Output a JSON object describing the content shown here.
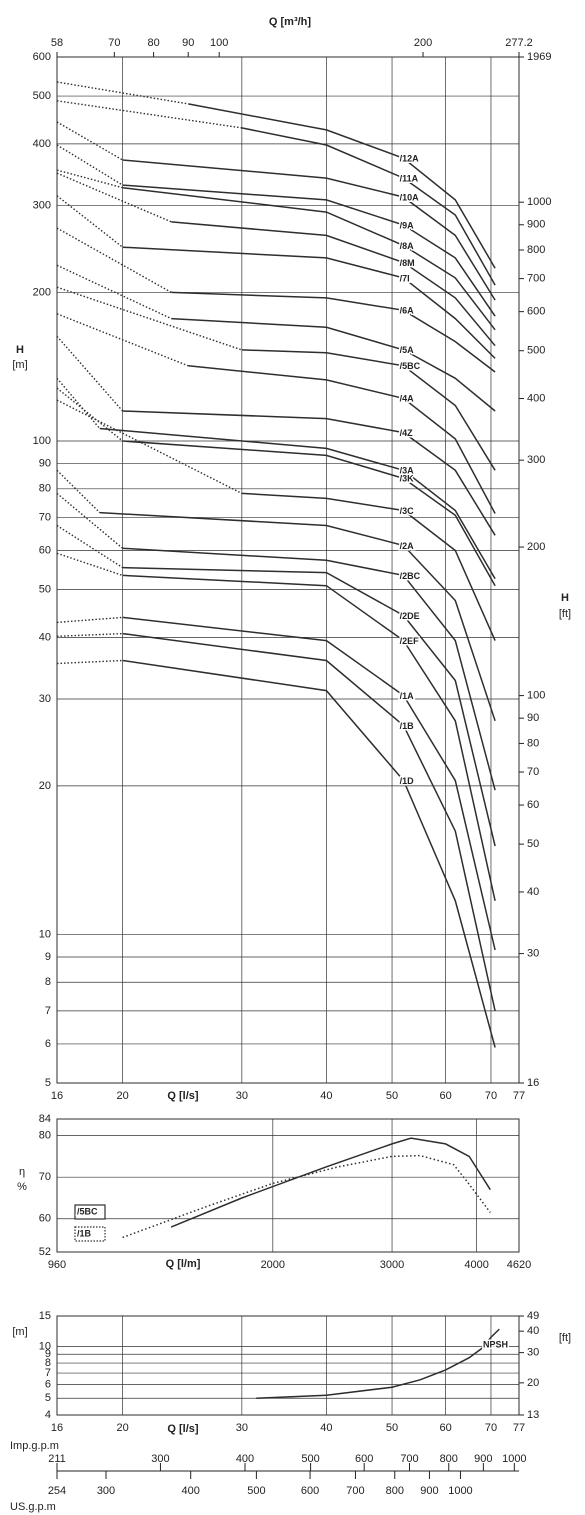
{
  "chart_data": [
    {
      "type": "line",
      "log_x": true,
      "log_y": true,
      "grid": true,
      "legend": "inline",
      "x2_label": "Q [m³/h]",
      "x_label": "Q [l/s]",
      "y_label": "H",
      "y_unit": "[m]",
      "y2_label": "H",
      "y2_unit": "[ft]",
      "xlim": [
        16,
        77
      ],
      "xticks": [
        16,
        20,
        30,
        40,
        50,
        60,
        70,
        77
      ],
      "x2lim": [
        57.6,
        277.2
      ],
      "x2ticks": [
        {
          "value": 57.6,
          "label": "58"
        },
        70,
        80,
        90,
        100,
        200,
        277.2
      ],
      "ylim": [
        5,
        600
      ],
      "yticks": [
        5,
        6,
        7,
        8,
        9,
        10,
        20,
        30,
        40,
        50,
        60,
        70,
        80,
        90,
        100,
        200,
        300,
        400,
        500,
        600
      ],
      "y2lim": [
        16.4,
        1969
      ],
      "y2ticks": [
        {
          "value": 16.4,
          "label": "16"
        },
        30,
        40,
        50,
        60,
        70,
        80,
        90,
        100,
        200,
        300,
        400,
        500,
        600,
        700,
        800,
        900,
        1000,
        1969
      ],
      "series": [
        {
          "name": "/12A",
          "color": "#2e2e2e",
          "dotted": {
            "x": [
              16,
              25
            ],
            "values": [
              534,
              482
            ]
          },
          "x": [
            25,
            40,
            52,
            62,
            71
          ],
          "values": [
            482,
            427,
            374,
            308,
            224
          ]
        },
        {
          "name": "/11A",
          "color": "#2e2e2e",
          "dotted": {
            "x": [
              16,
              30
            ],
            "values": [
              489,
              431
            ]
          },
          "x": [
            30,
            40,
            52,
            62,
            71
          ],
          "values": [
            431,
            398,
            341,
            287,
            207
          ]
        },
        {
          "name": "/10A",
          "color": "#2e2e2e",
          "dotted": {
            "x": [
              16,
              20
            ],
            "values": [
              443,
              371
            ]
          },
          "x": [
            20,
            40,
            52,
            62,
            71
          ],
          "values": [
            371,
            341,
            312,
            261,
            193
          ]
        },
        {
          "name": "/9A",
          "color": "#2e2e2e",
          "dotted": {
            "x": [
              16,
              20
            ],
            "values": [
              398,
              330
            ]
          },
          "x": [
            20,
            40,
            52,
            62,
            71
          ],
          "values": [
            330,
            308,
            274,
            235,
            179
          ]
        },
        {
          "name": "/8A",
          "color": "#2e2e2e",
          "dotted": {
            "x": [
              16,
              20
            ],
            "values": [
              354,
              326
            ]
          },
          "x": [
            20,
            40,
            52,
            62,
            71
          ],
          "values": [
            326,
            291,
            249,
            214,
            168
          ]
        },
        {
          "name": "/8M",
          "color": "#2e2e2e",
          "dotted": {
            "x": [
              16,
              23.6
            ],
            "values": [
              349,
              278
            ]
          },
          "x": [
            23.6,
            40,
            52,
            62,
            71
          ],
          "values": [
            278,
            261,
            230,
            195,
            156
          ]
        },
        {
          "name": "/7I",
          "color": "#2e2e2e",
          "dotted": {
            "x": [
              16,
              20
            ],
            "values": [
              314,
              247
            ]
          },
          "x": [
            20,
            40,
            52,
            62,
            71
          ],
          "values": [
            247,
            235,
            214,
            177,
            147
          ]
        },
        {
          "name": "/6A",
          "color": "#2e2e2e",
          "dotted": {
            "x": [
              16,
              23.6
            ],
            "values": [
              270,
              200
            ]
          },
          "x": [
            23.6,
            40,
            52,
            62,
            71
          ],
          "values": [
            200,
            195,
            184,
            159,
            138
          ]
        },
        {
          "name": "/5A",
          "color": "#2e2e2e",
          "dotted": {
            "x": [
              16,
              23.6
            ],
            "values": [
              227,
              177
            ]
          },
          "x": [
            23.6,
            40,
            52,
            62,
            71
          ],
          "values": [
            177,
            170,
            153,
            134,
            115
          ]
        },
        {
          "name": "/5BC",
          "color": "#2e2e2e",
          "dotted": {
            "x": [
              16,
              30
            ],
            "values": [
              205,
              153
            ]
          },
          "x": [
            30,
            40,
            52,
            62,
            71
          ],
          "values": [
            153,
            151,
            142,
            118,
            87.2
          ]
        },
        {
          "name": "/4A",
          "color": "#2e2e2e",
          "dotted": {
            "x": [
              16,
              25
            ],
            "values": [
              181,
              142
            ]
          },
          "x": [
            25,
            40,
            52,
            62,
            71
          ],
          "values": [
            142,
            133,
            122,
            101,
            71.3
          ]
        },
        {
          "name": "/4Z",
          "color": "#2e2e2e",
          "dotted": {
            "x": [
              16,
              20
            ],
            "values": [
              163,
              115
            ]
          },
          "x": [
            20,
            40,
            52,
            62,
            71
          ],
          "values": [
            115,
            111,
            104,
            87.2,
            64.4
          ]
        },
        {
          "name": "/3A",
          "color": "#2e2e2e",
          "dotted": {
            "x": [
              16,
              18.5
            ],
            "values": [
              134,
              106
            ]
          },
          "x": [
            18.5,
            40,
            52,
            62,
            71
          ],
          "values": [
            106,
            96.6,
            87.2,
            72.3,
            52.6
          ]
        },
        {
          "name": "/3K",
          "color": "#2e2e2e",
          "dotted": {
            "x": [
              16,
              20
            ],
            "values": [
              128,
              100
            ]
          },
          "x": [
            20,
            40,
            52,
            62,
            71
          ],
          "values": [
            100,
            93.5,
            84,
            70.7,
            50.9
          ]
        },
        {
          "name": "/3C",
          "color": "#2e2e2e",
          "dotted": {
            "x": [
              16,
              30
            ],
            "values": [
              121,
              78.3
            ]
          },
          "x": [
            30,
            40,
            52,
            62,
            71
          ],
          "values": [
            78.3,
            76.5,
            72.3,
            60,
            39.4
          ]
        },
        {
          "name": "/2A",
          "color": "#2e2e2e",
          "dotted": {
            "x": [
              16,
              18.5
            ],
            "values": [
              87.2,
              71.6
            ]
          },
          "x": [
            18.5,
            40,
            52,
            62,
            71
          ],
          "values": [
            71.6,
            67.4,
            61.4,
            47.5,
            27.1
          ]
        },
        {
          "name": "/2BC",
          "color": "#2e2e2e",
          "dotted": {
            "x": [
              16,
              20
            ],
            "values": [
              78.3,
              60.6
            ]
          },
          "x": [
            20,
            40,
            52,
            62,
            71
          ],
          "values": [
            60.6,
            57.3,
            53.4,
            39.4,
            19.6
          ]
        },
        {
          "name": "/2DE",
          "color": "#2e2e2e",
          "dotted": {
            "x": [
              16,
              20
            ],
            "values": [
              67.4,
              55.4
            ]
          },
          "x": [
            20,
            40,
            52,
            62,
            71
          ],
          "values": [
            55.4,
            54.1,
            44.3,
            32.7,
            15.1
          ]
        },
        {
          "name": "/2EF",
          "color": "#2e2e2e",
          "dotted": {
            "x": [
              16,
              20
            ],
            "values": [
              59.2,
              53.4
            ]
          },
          "x": [
            20,
            40,
            52,
            62,
            71
          ],
          "values": [
            53.4,
            50.9,
            39.4,
            27.1,
            11.7
          ]
        },
        {
          "name": "/1A",
          "color": "#2e2e2e",
          "dotted": {
            "x": [
              16,
              20
            ],
            "values": [
              42.9,
              43.9
            ]
          },
          "x": [
            20,
            40,
            52,
            62,
            71
          ],
          "values": [
            43.9,
            39.4,
            30.5,
            20.5,
            9.3
          ]
        },
        {
          "name": "/1B",
          "color": "#2e2e2e",
          "dotted": {
            "x": [
              16,
              20
            ],
            "values": [
              40.2,
              40.7
            ]
          },
          "x": [
            20,
            40,
            52,
            62,
            71
          ],
          "values": [
            40.7,
            35.9,
            26.5,
            16.2,
            7.0
          ]
        },
        {
          "name": "/1D",
          "color": "#2e2e2e",
          "dotted": {
            "x": [
              16,
              20
            ],
            "values": [
              35.4,
              35.9
            ]
          },
          "x": [
            20,
            40,
            52,
            62,
            71
          ],
          "values": [
            35.9,
            31.2,
            20.5,
            11.7,
            5.9
          ]
        }
      ]
    },
    {
      "type": "line",
      "log_x": true,
      "log_y": false,
      "grid": true,
      "legend": "lower left",
      "x_label": "Q [l/m]",
      "y_label": "η",
      "y_unit": "%",
      "xlim": [
        960,
        4620
      ],
      "xticks": [
        960,
        2000,
        3000,
        4000,
        4620
      ],
      "ylim": [
        52,
        84
      ],
      "yticks": [
        52,
        60,
        70,
        80,
        84
      ],
      "series": [
        {
          "name": "/5BC",
          "color": "#2e2e2e",
          "style": "solid",
          "x": [
            1415,
            1800,
            2400,
            3000,
            3200,
            3600,
            3900,
            4190
          ],
          "values": [
            58,
            65,
            72.5,
            78,
            79.4,
            78,
            75,
            67
          ]
        },
        {
          "name": "/1B",
          "color": "#2e2e2e",
          "style": "dotted",
          "x": [
            1200,
            1600,
            2000,
            2500,
            3000,
            3300,
            3700,
            3870,
            4190
          ],
          "values": [
            55.5,
            63,
            68.5,
            72.5,
            75,
            75.2,
            73,
            69,
            61.5
          ]
        }
      ]
    },
    {
      "type": "line",
      "log_x": true,
      "log_y": true,
      "grid": true,
      "legend": "inline",
      "x_label": "Q [l/s]",
      "y_label": "[m]",
      "y2_label": "[ft]",
      "xlim": [
        16,
        77
      ],
      "xticks": [
        16,
        20,
        30,
        40,
        50,
        60,
        70,
        77
      ],
      "ylim": [
        4,
        15
      ],
      "yticks": [
        4,
        5,
        6,
        7,
        8,
        9,
        10,
        15
      ],
      "y2lim": [
        13,
        49
      ],
      "y2ticks": [
        13,
        20,
        30,
        40,
        49
      ],
      "series": [
        {
          "name": "NPSH",
          "color": "#2e2e2e",
          "style": "solid",
          "x": [
            31.5,
            40,
            50,
            55,
            60,
            65,
            68,
            70,
            72
          ],
          "values": [
            5,
            5.2,
            5.8,
            6.4,
            7.3,
            8.6,
            9.8,
            11.3,
            12.6
          ]
        }
      ],
      "imp_label": "Imp.g.p.m",
      "imp_lim": [
        211,
        1016
      ],
      "imp_ticks": [
        211,
        300,
        400,
        500,
        600,
        700,
        800,
        900,
        1000
      ],
      "us_label": "US.g.p.m",
      "us_lim": [
        254,
        1220
      ],
      "us_ticks": [
        254,
        300,
        400,
        500,
        600,
        700,
        800,
        900,
        1000
      ]
    }
  ]
}
